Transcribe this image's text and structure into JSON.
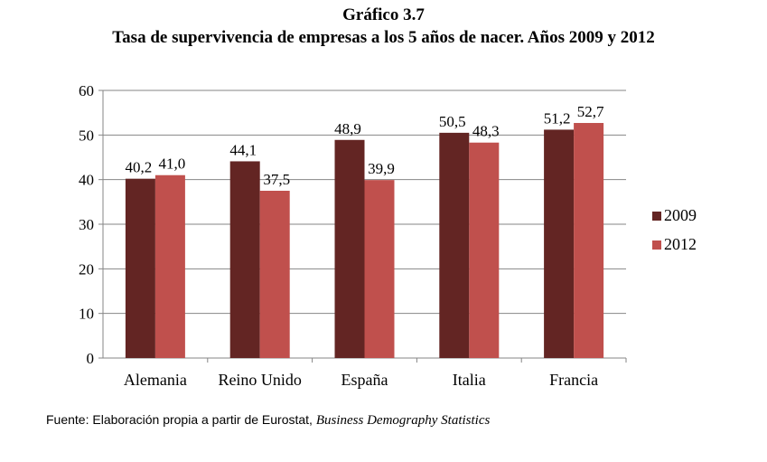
{
  "chart_data": {
    "type": "bar",
    "title": "Gráfico 3.7",
    "subtitle": "Tasa de supervivencia de empresas a los 5 años de nacer. Años 2009 y 2012",
    "categories": [
      "Alemania",
      "Reino Unido",
      "España",
      "Italia",
      "Francia"
    ],
    "series": [
      {
        "name": "2009",
        "values": [
          40.2,
          44.1,
          48.9,
          50.5,
          51.2
        ],
        "labels": [
          "40,2",
          "44,1",
          "48,9",
          "50,5",
          "51,2"
        ],
        "color": "#632523"
      },
      {
        "name": "2012",
        "values": [
          41.0,
          37.5,
          39.9,
          48.3,
          52.7
        ],
        "labels": [
          "41,0",
          "37,5",
          "39,9",
          "48,3",
          "52,7"
        ],
        "color": "#c0504d"
      }
    ],
    "ylim": [
      0,
      60
    ],
    "yticks": [
      "0",
      "10",
      "20",
      "30",
      "40",
      "50",
      "60"
    ],
    "grid": true,
    "legend": "right"
  },
  "source": {
    "prefix": "Fuente: Elaboración propia a partir de Eurostat, ",
    "italic": "Business Demography Statistics"
  }
}
